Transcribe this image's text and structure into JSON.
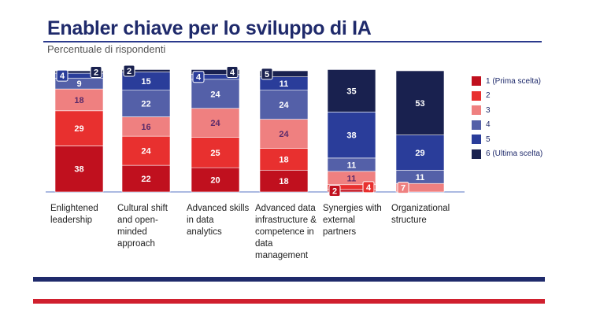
{
  "chart_data": {
    "type": "bar",
    "stacked": true,
    "title": "Enabler chiave per lo sviluppo di IA",
    "subtitle": "Percentuale di rispondenti",
    "categories": [
      "Enlightened leadership",
      "Cultural shift and open-minded approach",
      "Advanced skills in data analytics",
      "Advanced data infrastructure & competence in data management",
      "Synergies with external partners",
      "Organizational structure"
    ],
    "series": [
      {
        "name": "1 (Prima scelta)",
        "color": "#c0101e",
        "values": [
          38,
          22,
          20,
          18,
          2,
          0
        ]
      },
      {
        "name": "2",
        "color": "#e8302f",
        "values": [
          29,
          24,
          25,
          18,
          4,
          0
        ]
      },
      {
        "name": "3",
        "color": "#ef8080",
        "values": [
          18,
          16,
          24,
          24,
          11,
          7
        ]
      },
      {
        "name": "4",
        "color": "#5460a8",
        "values": [
          9,
          22,
          24,
          24,
          11,
          11
        ]
      },
      {
        "name": "5",
        "color": "#2a3d9a",
        "values": [
          4,
          15,
          4,
          11,
          38,
          29
        ]
      },
      {
        "name": "6 (Ultima scelta)",
        "color": "#19214f",
        "values": [
          2,
          2,
          4,
          5,
          35,
          53
        ]
      }
    ],
    "ylim": [
      0,
      100
    ],
    "legend": "right"
  }
}
